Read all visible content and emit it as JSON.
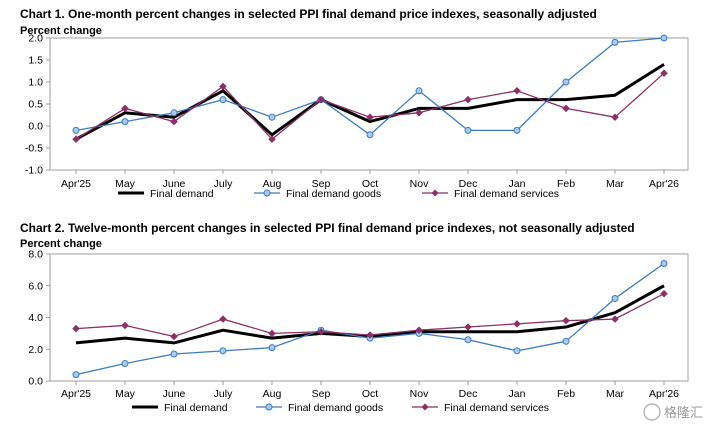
{
  "chart_data": [
    {
      "type": "line",
      "title": "Chart 1. One-month percent changes in selected PPI final demand price indexes, seasonally adjusted",
      "ylabel": "Percent change",
      "ylim": [
        -1.0,
        2.0
      ],
      "yticks": [
        "2.0",
        "1.5",
        "1.0",
        "0.5",
        "0.0",
        "-0.5",
        "-1.0"
      ],
      "categories": [
        "Apr'25",
        "May",
        "June",
        "July",
        "Aug",
        "Sep",
        "Oct",
        "Nov",
        "Dec",
        "Jan",
        "Feb",
        "Mar",
        "Apr'26"
      ],
      "legend_position": "bottom",
      "grid": false,
      "series": [
        {
          "name": "Final demand",
          "color": "#000000",
          "marker": "none",
          "values": [
            -0.3,
            0.3,
            0.2,
            0.8,
            -0.2,
            0.6,
            0.1,
            0.4,
            0.4,
            0.6,
            0.6,
            0.7,
            1.4
          ]
        },
        {
          "name": "Final demand goods",
          "color": "#3b7bbf",
          "marker": "circle",
          "values": [
            -0.1,
            0.1,
            0.3,
            0.6,
            0.2,
            0.6,
            -0.2,
            0.8,
            -0.1,
            -0.1,
            1.0,
            1.9,
            2.0
          ]
        },
        {
          "name": "Final demand services",
          "color": "#8b2f68",
          "marker": "diamond",
          "values": [
            -0.3,
            0.4,
            0.1,
            0.9,
            -0.3,
            0.6,
            0.2,
            0.3,
            0.6,
            0.8,
            0.4,
            0.2,
            1.2
          ]
        }
      ]
    },
    {
      "type": "line",
      "title": "Chart 2. Twelve-month percent changes in selected PPI final demand price indexes, not seasonally adjusted",
      "ylabel": "Percent change",
      "ylim": [
        0.0,
        8.0
      ],
      "yticks": [
        "8.0",
        "6.0",
        "4.0",
        "2.0",
        "0.0"
      ],
      "categories": [
        "Apr'25",
        "May",
        "June",
        "July",
        "Aug",
        "Sep",
        "Oct",
        "Nov",
        "Dec",
        "Jan",
        "Feb",
        "Mar",
        "Apr'26"
      ],
      "legend_position": "bottom",
      "grid": false,
      "series": [
        {
          "name": "Final demand",
          "color": "#000000",
          "marker": "none",
          "values": [
            2.4,
            2.7,
            2.4,
            3.2,
            2.7,
            3.0,
            2.8,
            3.1,
            3.1,
            3.1,
            3.4,
            4.3,
            6.0
          ]
        },
        {
          "name": "Final demand goods",
          "color": "#3b7bbf",
          "marker": "circle",
          "values": [
            0.4,
            1.1,
            1.7,
            1.9,
            2.1,
            3.2,
            2.7,
            3.0,
            2.6,
            1.9,
            2.5,
            5.2,
            7.4
          ]
        },
        {
          "name": "Final demand services",
          "color": "#8b2f68",
          "marker": "diamond",
          "values": [
            3.3,
            3.5,
            2.8,
            3.9,
            3.0,
            3.1,
            2.9,
            3.2,
            3.4,
            3.6,
            3.8,
            3.9,
            5.5
          ]
        }
      ]
    }
  ],
  "watermark": "格隆汇"
}
